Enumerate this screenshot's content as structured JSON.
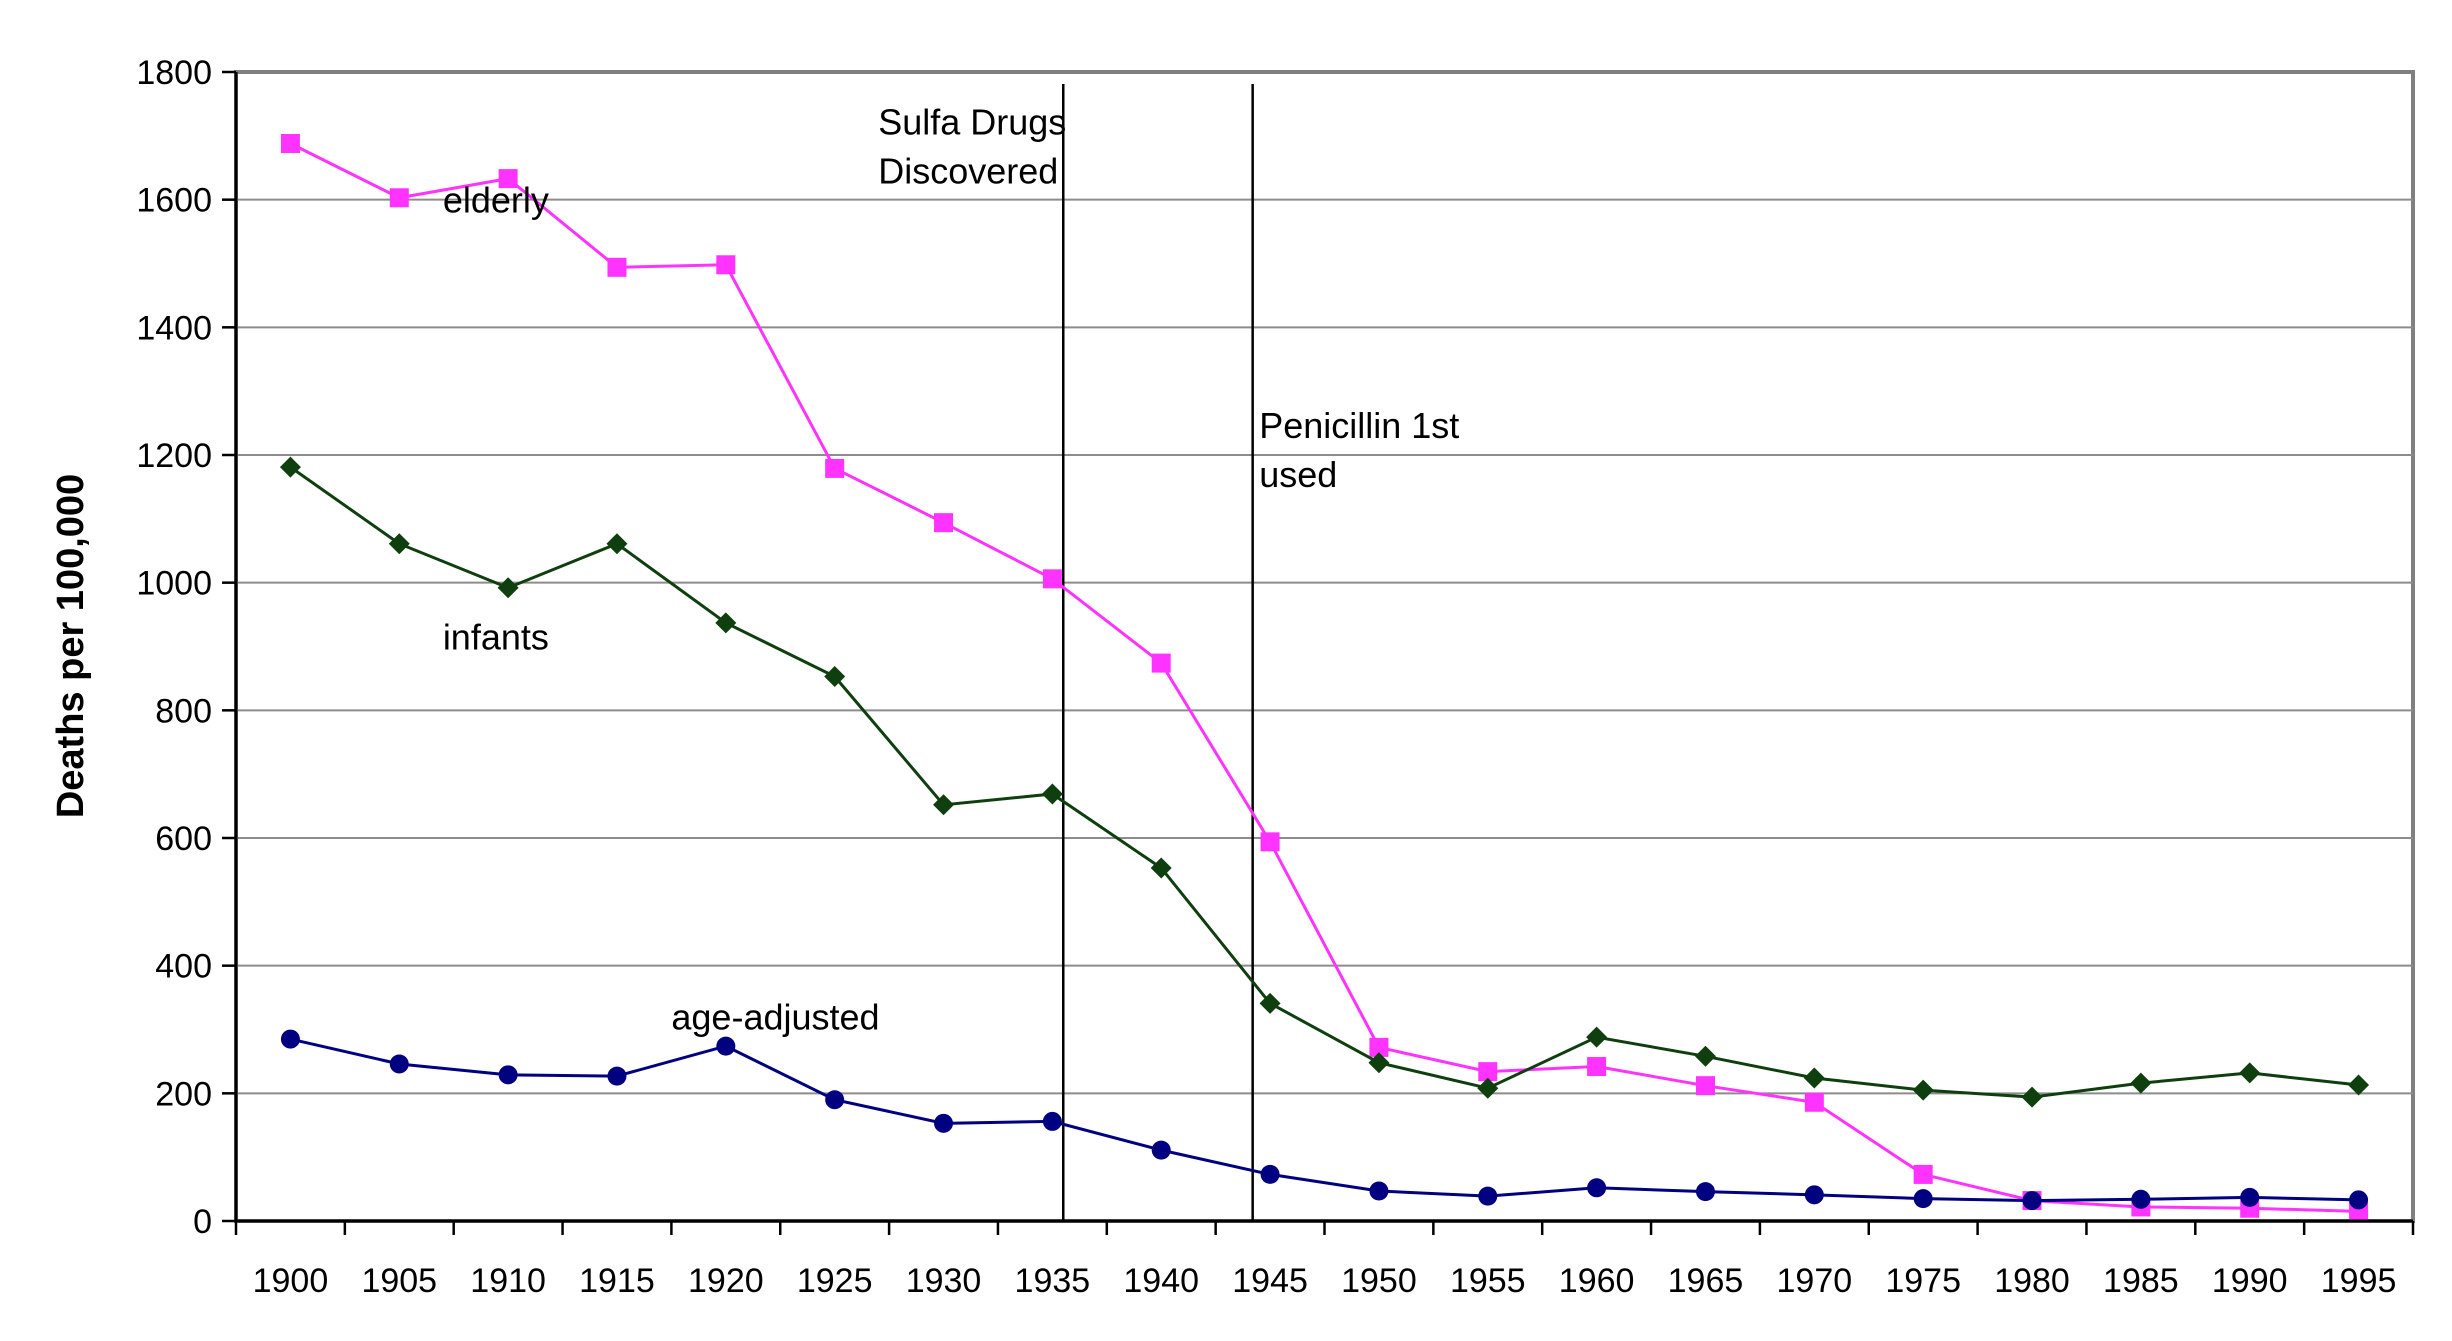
{
  "chart_data": {
    "type": "line",
    "title": "",
    "xlabel": "",
    "ylabel": "Deaths per 100,000",
    "ylim": [
      0,
      1800
    ],
    "yticks": [
      "0",
      "200",
      "400",
      "600",
      "800",
      "1000",
      "1200",
      "1400",
      "1600",
      "1800"
    ],
    "categories": [
      "1900",
      "1905",
      "1910",
      "1915",
      "1920",
      "1925",
      "1930",
      "1935",
      "1940",
      "1945",
      "1950",
      "1955",
      "1960",
      "1965",
      "1970",
      "1975",
      "1980",
      "1985",
      "1990",
      "1995"
    ],
    "grid": true,
    "series": [
      {
        "name": "elderly",
        "color": "#FF33FF",
        "marker": "square",
        "values": [
          1688,
          1603,
          1633,
          1494,
          1498,
          1179,
          1094,
          1006,
          874,
          594,
          272,
          234,
          242,
          212,
          186,
          73,
          32,
          22,
          20,
          15
        ]
      },
      {
        "name": "infants",
        "color": "#0F3F0F",
        "marker": "diamond",
        "values": [
          1181,
          1061,
          992,
          1061,
          937,
          853,
          652,
          669,
          553,
          341,
          248,
          208,
          288,
          258,
          224,
          205,
          194,
          216,
          232,
          213
        ]
      },
      {
        "name": "age-adjusted",
        "color": "#000080",
        "marker": "circle",
        "values": [
          285,
          246,
          229,
          227,
          274,
          190,
          153,
          156,
          111,
          73,
          47,
          39,
          52,
          46,
          41,
          35,
          32,
          34,
          37,
          33
        ]
      }
    ],
    "series_labels": [
      {
        "text": "elderly",
        "x": 1907,
        "y": 1580
      },
      {
        "text": "infants",
        "x": 1907,
        "y": 895
      },
      {
        "text": "age-adjusted",
        "x": 1917.5,
        "y": 300
      }
    ],
    "annotations": [
      {
        "x": 1935.5,
        "lines": [
          "Sulfa Drugs",
          "Discovered"
        ],
        "label_x": 1927,
        "label_y": 1702
      },
      {
        "x": 1944.2,
        "lines": [
          "Penicillin 1st",
          "used"
        ],
        "label_x": 1944.5,
        "label_y": 1227
      }
    ]
  }
}
